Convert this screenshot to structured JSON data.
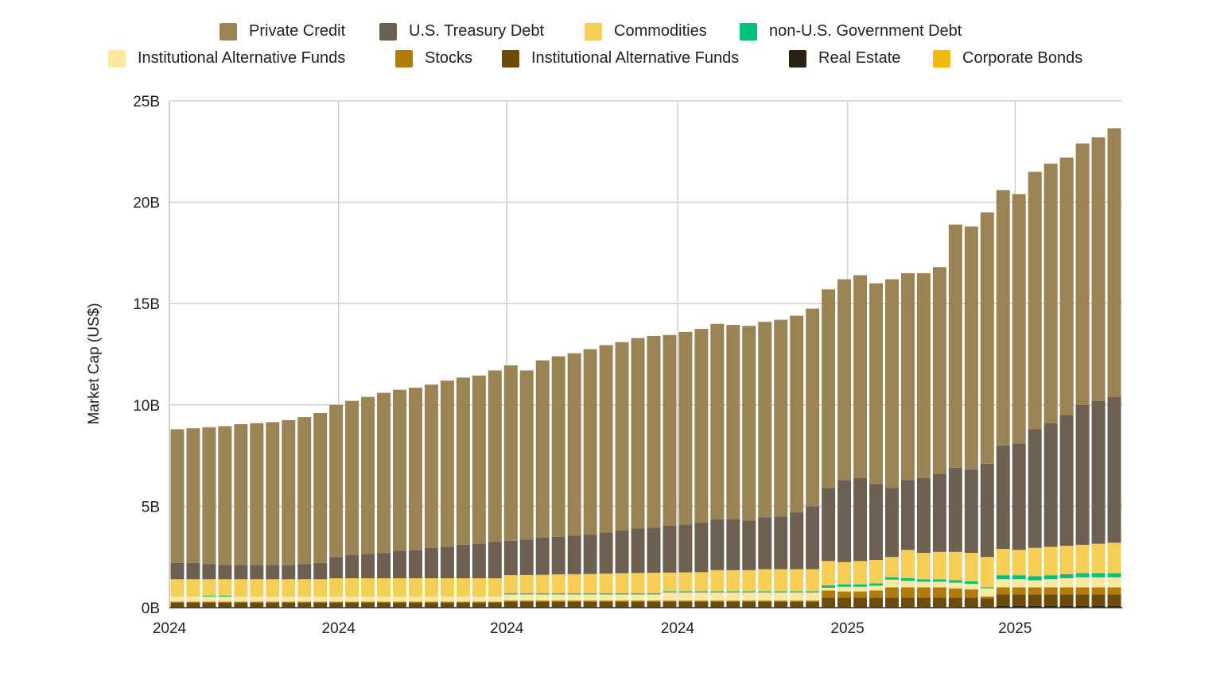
{
  "chart_data": {
    "type": "bar",
    "stacked": true,
    "title": "",
    "xlabel": "",
    "ylabel": "Market Cap (US$)",
    "ylim": [
      0,
      25
    ],
    "y_unit": "B",
    "y_ticks": [
      "0B",
      "5B",
      "10B",
      "15B",
      "20B",
      "25B"
    ],
    "y_tick_values": [
      0,
      5,
      10,
      15,
      20,
      25
    ],
    "x_ticks": [
      {
        "label": "2024",
        "at_bar": 0
      },
      {
        "label": "2024",
        "at_bar": 10.65
      },
      {
        "label": "2024",
        "at_bar": 21.25
      },
      {
        "label": "2024",
        "at_bar": 32
      },
      {
        "label": "2025",
        "at_bar": 42.7
      },
      {
        "label": "2025",
        "at_bar": 53.25
      }
    ],
    "bar_count": 60,
    "grid": true,
    "legend_placement": "top",
    "stack_order": [
      7,
      6,
      5,
      4,
      3,
      2,
      1,
      0,
      8
    ],
    "series": [
      {
        "name": "Private Credit",
        "color": "#9a8354",
        "values": [
          6.6,
          6.65,
          6.75,
          6.85,
          6.95,
          7.0,
          7.05,
          7.15,
          7.25,
          7.4,
          7.5,
          7.6,
          7.75,
          7.9,
          7.95,
          8.0,
          8.05,
          8.2,
          8.25,
          8.3,
          8.45,
          8.65,
          8.35,
          8.75,
          8.9,
          9.0,
          9.15,
          9.25,
          9.3,
          9.4,
          9.45,
          9.4,
          9.5,
          9.55,
          9.65,
          9.6,
          9.6,
          9.65,
          9.7,
          9.7,
          9.75,
          9.8,
          9.9,
          10.0,
          9.9,
          10.3,
          10.2,
          10.1,
          10.2,
          12.0,
          12.0,
          12.4,
          12.6,
          12.3,
          12.7,
          12.8,
          12.7,
          12.9,
          13.0,
          13.25
        ]
      },
      {
        "name": "U.S. Treasury Debt",
        "color": "#6b6052",
        "values": [
          0.8,
          0.8,
          0.75,
          0.7,
          0.7,
          0.7,
          0.7,
          0.7,
          0.75,
          0.8,
          1.05,
          1.15,
          1.2,
          1.25,
          1.35,
          1.4,
          1.5,
          1.55,
          1.65,
          1.7,
          1.8,
          1.7,
          1.74,
          1.83,
          1.86,
          1.9,
          1.94,
          2.02,
          2.1,
          2.19,
          2.23,
          2.32,
          2.36,
          2.45,
          2.5,
          2.5,
          2.45,
          2.55,
          2.6,
          2.8,
          3.1,
          3.6,
          4.05,
          4.1,
          3.75,
          3.4,
          3.45,
          3.7,
          3.85,
          4.15,
          4.1,
          4.6,
          5.1,
          5.25,
          5.85,
          6.1,
          6.45,
          6.9,
          7.05,
          7.2
        ]
      },
      {
        "name": "Commodities",
        "color": "#f6cd55",
        "values": [
          0.85,
          0.85,
          0.81,
          0.81,
          0.85,
          0.85,
          0.85,
          0.85,
          0.85,
          0.85,
          0.9,
          0.9,
          0.9,
          0.9,
          0.9,
          0.9,
          0.9,
          0.9,
          0.9,
          0.9,
          0.9,
          0.89,
          0.9,
          0.91,
          0.93,
          0.94,
          0.95,
          0.97,
          0.99,
          1.0,
          1.01,
          0.92,
          0.93,
          0.94,
          1.04,
          1.04,
          1.04,
          1.09,
          1.09,
          1.09,
          1.09,
          1.2,
          1.1,
          1.15,
          1.15,
          1.0,
          1.4,
          1.3,
          1.35,
          1.4,
          1.4,
          1.5,
          1.3,
          1.25,
          1.4,
          1.4,
          1.4,
          1.4,
          1.45,
          1.5
        ]
      },
      {
        "name": "non-U.S. Government Debt",
        "color": "#00c07a",
        "values": [
          0,
          0,
          0.04,
          0.04,
          0,
          0,
          0,
          0,
          0,
          0,
          0,
          0,
          0,
          0,
          0,
          0,
          0,
          0,
          0,
          0,
          0,
          0.06,
          0.06,
          0.06,
          0.06,
          0.06,
          0.06,
          0.06,
          0.06,
          0.06,
          0.06,
          0.06,
          0.06,
          0.06,
          0.06,
          0.06,
          0.06,
          0.06,
          0.06,
          0.06,
          0.06,
          0.12,
          0.12,
          0.12,
          0.12,
          0.12,
          0.12,
          0.12,
          0.12,
          0.12,
          0.12,
          0.05,
          0.2,
          0.2,
          0.2,
          0.2,
          0.2,
          0.2,
          0.2,
          0.2
        ]
      },
      {
        "name": "Institutional Alternative Funds",
        "color": "#fde8a0",
        "values": [
          0.25,
          0.25,
          0.25,
          0.25,
          0.25,
          0.25,
          0.25,
          0.25,
          0.25,
          0.25,
          0.25,
          0.25,
          0.25,
          0.25,
          0.25,
          0.25,
          0.25,
          0.25,
          0.25,
          0.25,
          0.25,
          0.3,
          0.3,
          0.3,
          0.3,
          0.3,
          0.3,
          0.3,
          0.3,
          0.3,
          0.3,
          0.4,
          0.4,
          0.4,
          0.4,
          0.4,
          0.4,
          0.4,
          0.4,
          0.4,
          0.4,
          0.13,
          0.23,
          0.23,
          0.23,
          0.38,
          0.33,
          0.28,
          0.28,
          0.28,
          0.28,
          0.4,
          0.4,
          0.4,
          0.35,
          0.4,
          0.45,
          0.5,
          0.5,
          0.5
        ]
      },
      {
        "name": "Stocks",
        "color": "#b07d0a",
        "values": [
          0.05,
          0.05,
          0.05,
          0.05,
          0.05,
          0.05,
          0.05,
          0.05,
          0.05,
          0.05,
          0.05,
          0.05,
          0.05,
          0.05,
          0.05,
          0.05,
          0.05,
          0.05,
          0.05,
          0.05,
          0.05,
          0.05,
          0.05,
          0.05,
          0.05,
          0.05,
          0.05,
          0.05,
          0.05,
          0.05,
          0.05,
          0.05,
          0.05,
          0.05,
          0.05,
          0.05,
          0.05,
          0.05,
          0.05,
          0.05,
          0.05,
          0.35,
          0.3,
          0.3,
          0.35,
          0.5,
          0.5,
          0.5,
          0.5,
          0.45,
          0.4,
          0.1,
          0.35,
          0.35,
          0.35,
          0.35,
          0.35,
          0.35,
          0.35,
          0.35
        ]
      },
      {
        "name": "Institutional Alternative Funds",
        "color": "#6b4c0c",
        "values": [
          0.25,
          0.25,
          0.25,
          0.25,
          0.25,
          0.25,
          0.25,
          0.25,
          0.25,
          0.25,
          0.25,
          0.25,
          0.25,
          0.25,
          0.25,
          0.25,
          0.25,
          0.25,
          0.25,
          0.25,
          0.25,
          0.3,
          0.3,
          0.3,
          0.3,
          0.3,
          0.3,
          0.3,
          0.3,
          0.3,
          0.3,
          0.3,
          0.3,
          0.3,
          0.3,
          0.3,
          0.3,
          0.3,
          0.3,
          0.3,
          0.3,
          0.5,
          0.5,
          0.5,
          0.5,
          0.5,
          0.5,
          0.5,
          0.5,
          0.5,
          0.5,
          0.45,
          0.57,
          0.57,
          0.57,
          0.57,
          0.57,
          0.57,
          0.57,
          0.57
        ]
      },
      {
        "name": "Real Estate",
        "color": "#2a2210",
        "values": [
          0,
          0,
          0,
          0,
          0,
          0,
          0,
          0,
          0,
          0,
          0,
          0,
          0,
          0,
          0,
          0,
          0,
          0,
          0,
          0,
          0,
          0,
          0,
          0,
          0,
          0,
          0,
          0,
          0,
          0,
          0,
          0,
          0,
          0,
          0,
          0,
          0,
          0,
          0,
          0,
          0,
          0,
          0,
          0,
          0,
          0,
          0,
          0,
          0,
          0,
          0,
          0,
          0.08,
          0.08,
          0.08,
          0.08,
          0.08,
          0.08,
          0.08,
          0.08
        ]
      },
      {
        "name": "Corporate Bonds",
        "color": "#f0b90b",
        "values": [
          0,
          0,
          0,
          0,
          0,
          0,
          0,
          0,
          0,
          0,
          0,
          0,
          0,
          0,
          0,
          0,
          0,
          0,
          0,
          0,
          0,
          0,
          0,
          0,
          0,
          0,
          0,
          0,
          0,
          0,
          0,
          0,
          0,
          0,
          0,
          0,
          0,
          0,
          0,
          0,
          0,
          0,
          0,
          0,
          0,
          0,
          0,
          0,
          0,
          0,
          0,
          0,
          0,
          0,
          0,
          0,
          0,
          0,
          0,
          0
        ]
      }
    ]
  }
}
